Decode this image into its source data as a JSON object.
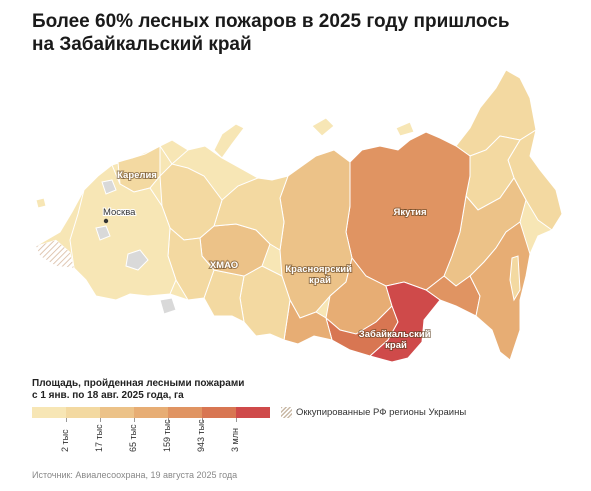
{
  "header": {
    "title_line1": "Более 60% лесных пожаров в 2025 году пришлось",
    "title_line2": "на Забайкальский край"
  },
  "map": {
    "regions": [
      {
        "label_line1": "Карелия",
        "label_line2": "",
        "bin": 2
      },
      {
        "label_line1": "ХМАО",
        "label_line2": "",
        "bin": 3
      },
      {
        "label_line1": "Красноярский",
        "label_line2": "край",
        "bin": 4
      },
      {
        "label_line1": "Якутия",
        "label_line2": "",
        "bin": 5
      },
      {
        "label_line1": "Забайкальский",
        "label_line2": "край",
        "bin": 7
      }
    ],
    "cities": [
      {
        "name": "Москва"
      }
    ]
  },
  "legend": {
    "title_line1": "Площадь, пройденная лесными пожарами",
    "title_line2": "с 1 янв. по 18 авг. 2025 года, га",
    "colors": [
      "#f7e6b5",
      "#f3d9a1",
      "#ecc288",
      "#e7ad74",
      "#e09462",
      "#d87652",
      "#cf4a4a"
    ],
    "ticks": [
      "2 тыс",
      "17 тыс",
      "65 тыс",
      "159 тыс",
      "943 тыс",
      "3 млн"
    ],
    "occupied_label": "Оккупированные РФ регионы Украины"
  },
  "source": "Источник: Авиалесоохрана, 19 августа 2025 года",
  "colors": {
    "no_data": "#d9d9d9",
    "border": "#ffffff"
  }
}
